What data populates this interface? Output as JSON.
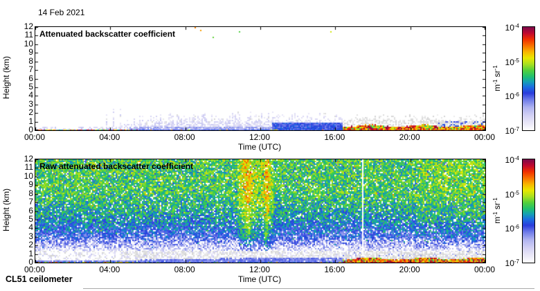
{
  "page": {
    "date_label": "14 Feb 2021",
    "footer": "CL51 ceilometer",
    "background": "#ffffff",
    "axis_color": "#000000"
  },
  "chart_data": [
    {
      "type": "heatmap",
      "panel": "attenuated",
      "title": "Attenuated backscatter coefficient",
      "xlabel": "Time (UTC)",
      "ylabel": "Height (km)",
      "x_range_hours": [
        0,
        24
      ],
      "y_range_km": [
        0,
        12
      ],
      "x_tick_hours": [
        0,
        4,
        8,
        12,
        16,
        20,
        24
      ],
      "x_tick_labels": [
        "00:00",
        "04:00",
        "08:00",
        "12:00",
        "16:00",
        "20:00",
        "00:00"
      ],
      "y_tick_labels": [
        "0",
        "1",
        "2",
        "3",
        "4",
        "5",
        "6",
        "7",
        "8",
        "9",
        "10",
        "11",
        "12"
      ],
      "colorbar_scale": "log",
      "colorbar_range": [
        1e-07,
        0.0001
      ],
      "colorbar_tick_exps": [
        "-4",
        "-5",
        "-6",
        "-7"
      ],
      "colorbar_unit": [
        [
          "m",
          "-1"
        ],
        [
          "sr",
          "-1"
        ]
      ],
      "features": [
        "clear (white) sky above ~2 km for most of the day",
        "mixed red/green/yellow near-surface strip 00:00-05:30 below ~0.2 km",
        "pale-blue aerosol/boundary-layer speckle up to ~2 km from ~04:00 to ~16:30",
        "strong red-orange backscatter band (~1e-5 to 1e-4 m-1 sr-1) below ~0.6 km from ~16:30 to 24:00 with gray speckle above it",
        "isolated colored noise pixels near 11-12 km between ~08:00 and 17:00",
        "solid blue patch below ~1 km near 22:00-24:00"
      ],
      "render": {
        "kind": "processed",
        "seed": 1337,
        "cell": 2,
        "surface_mix_end_h": 5.5,
        "haze_start_h": 3.3,
        "haze_max_km": 1.9,
        "band_start_h": 16.4,
        "band_height_km": 0.45
      }
    },
    {
      "type": "heatmap",
      "panel": "raw",
      "title": "Raw attenuated backscatter coefficient",
      "xlabel": "Time (UTC)",
      "ylabel": "Height (km)",
      "x_range_hours": [
        0,
        24
      ],
      "y_range_km": [
        0,
        12
      ],
      "x_tick_hours": [
        0,
        4,
        8,
        12,
        16,
        20,
        24
      ],
      "x_tick_labels": [
        "00:00",
        "04:00",
        "08:00",
        "12:00",
        "16:00",
        "20:00",
        "00:00"
      ],
      "y_tick_labels": [
        "0",
        "1",
        "2",
        "3",
        "4",
        "5",
        "6",
        "7",
        "8",
        "9",
        "10",
        "11",
        "12"
      ],
      "colorbar_scale": "log",
      "colorbar_range": [
        1e-07,
        0.0001
      ],
      "colorbar_tick_exps": [
        "-4",
        "-5",
        "-6",
        "-7"
      ],
      "colorbar_unit": [
        [
          "m",
          "-1"
        ],
        [
          "sr",
          "-1"
        ]
      ],
      "features": [
        "green background noise aloft (6-12 km) fading to blue at mid levels and near-white below ~3 km",
        "yellow-orange high-noise vertical streaks around 11:00-12:30",
        "white data-gap column near 17:30",
        "light-blue boundary-layer hump below ~0.6 km from ~05:00 to ~16:30",
        "red-orange surface band from ~16:30 to 24:00 with gray speckle band above",
        "mixed colorful surface strip 00:00-05:30"
      ],
      "render": {
        "kind": "raw",
        "seed": 2021,
        "cell": 2,
        "surface_mix_end_h": 5.5,
        "band_start_h": 16.4,
        "band_height_km": 0.42,
        "streak_window_h": [
          10.8,
          12.7
        ],
        "streak_peaks_h": [
          11.3,
          12.35
        ],
        "gap_h": 17.45,
        "bl_rise_start_h": 4.6
      }
    }
  ],
  "colormap_stops": [
    [
      0.0,
      "#ffffff"
    ],
    [
      0.06,
      "#eceaf8"
    ],
    [
      0.14,
      "#d4d2f4"
    ],
    [
      0.22,
      "#b0b4f0"
    ],
    [
      0.3,
      "#6a78e8"
    ],
    [
      0.36,
      "#2a3cdc"
    ],
    [
      0.42,
      "#1b6ee0"
    ],
    [
      0.47,
      "#15a0b4"
    ],
    [
      0.52,
      "#1fc070"
    ],
    [
      0.58,
      "#52d03c"
    ],
    [
      0.64,
      "#a8e020"
    ],
    [
      0.7,
      "#e8e800"
    ],
    [
      0.76,
      "#f8b400"
    ],
    [
      0.82,
      "#f87000"
    ],
    [
      0.88,
      "#f03000"
    ],
    [
      0.94,
      "#c00830"
    ],
    [
      1.0,
      "#7a0a4a"
    ]
  ]
}
